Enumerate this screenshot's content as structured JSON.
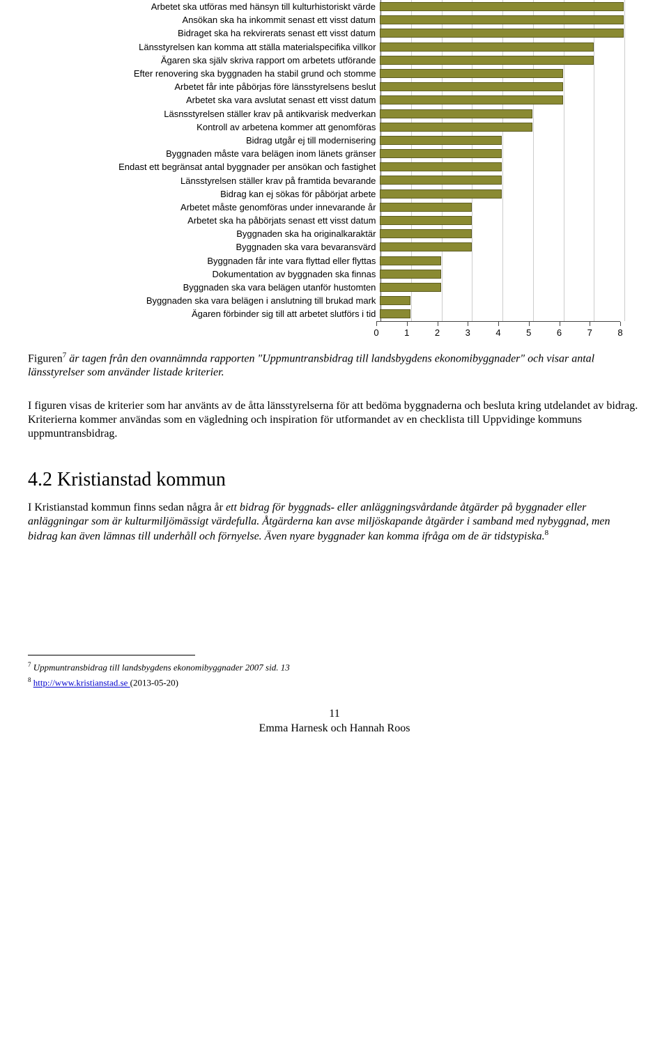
{
  "chart": {
    "type": "bar-horizontal",
    "bar_color": "#8a8a32",
    "bar_border_color": "#5c5c20",
    "grid_color": "#cccccc",
    "axis_color": "#444444",
    "background_color": "#ffffff",
    "label_fontsize": 13,
    "xlim": [
      0,
      8
    ],
    "xtick_step": 1,
    "xticks": [
      "0",
      "1",
      "2",
      "3",
      "4",
      "5",
      "6",
      "7",
      "8"
    ],
    "rows": [
      {
        "label": "Arbetet ska utföras med hänsyn till kulturhistoriskt värde",
        "value": 8
      },
      {
        "label": "Ansökan ska ha inkommit senast ett visst datum",
        "value": 8
      },
      {
        "label": "Bidraget ska ha rekvirerats  senast ett visst datum",
        "value": 8
      },
      {
        "label": "Länsstyrelsen kan komma att ställa materialspecifika villkor",
        "value": 7
      },
      {
        "label": "Ägaren ska själv  skriva rapport om  arbetets utförande",
        "value": 7
      },
      {
        "label": "Efter renovering ska byggnaden ha stabil grund och stomme",
        "value": 6
      },
      {
        "label": "Arbetet får inte påbörjas före länsstyrelsens beslut",
        "value": 6
      },
      {
        "label": "Arbetet ska vara avslutat senast ett visst datum",
        "value": 6
      },
      {
        "label": "Läsnsstyrelsen ställer krav på antikvarisk medverkan",
        "value": 5
      },
      {
        "label": "Kontroll av arbetena kommer att genomföras",
        "value": 5
      },
      {
        "label": "Bidrag utgår ej till modernisering",
        "value": 4
      },
      {
        "label": "Byggnaden måste vara belägen inom länets gränser",
        "value": 4
      },
      {
        "label": "Endast ett begränsat antal byggnader per ansökan och fastighet",
        "value": 4
      },
      {
        "label": "Länsstyrelsen ställer krav på framtida bevarande",
        "value": 4
      },
      {
        "label": "Bidrag kan ej sökas för påbörjat arbete",
        "value": 4
      },
      {
        "label": "Arbetet måste genomföras under innevarande år",
        "value": 3
      },
      {
        "label": "Arbetet ska ha påbörjats senast ett visst datum",
        "value": 3
      },
      {
        "label": "Byggnaden ska ha originalkaraktär",
        "value": 3
      },
      {
        "label": "Byggnaden ska vara bevaransvärd",
        "value": 3
      },
      {
        "label": "Byggnaden får inte vara flyttad eller flyttas",
        "value": 2
      },
      {
        "label": "Dokumentation av byggnaden ska finnas",
        "value": 2
      },
      {
        "label": "Byggnaden ska vara belägen utanför hustomten",
        "value": 2
      },
      {
        "label": "Byggnaden ska vara belägen i anslutning till brukad mark",
        "value": 1
      },
      {
        "label": "Ägaren förbinder sig till att arbetet slutförs i tid",
        "value": 1
      }
    ]
  },
  "caption": {
    "prefix": "Figuren",
    "sup": "7",
    "rest": " är tagen från den ovannämnda rapporten \"Uppmuntransbidrag till landsbygdens ekonomibyggnader\" och visar antal länsstyrelser som använder listade kriterier."
  },
  "para1": "I figuren visas de kriterier som har använts av de åtta länsstyrelserna för att bedöma byggnaderna och besluta kring utdelandet av bidrag. Kriterierna kommer användas som en vägledning och inspiration för utformandet av en checklista till Uppvidinge kommuns uppmuntransbidrag.",
  "section_heading": "4.2 Kristianstad kommun",
  "italic_para": {
    "lead_roman": "I Kristianstad kommun finns sedan några år ",
    "body": "ett bidrag för byggnads- eller anläggningsvårdande åtgärder på byggnader eller anläggningar som är kulturmiljömässigt värdefulla. Åtgärderna kan avse miljöskapande åtgärder i samband med nybyggnad, men bidrag kan även lämnas till underhåll och förnyelse. Även nyare byggnader kan komma ifråga om de är tidstypiska.",
    "sup": "8"
  },
  "footnotes": {
    "f7": {
      "sup": "7",
      "text": " Uppmuntransbidrag till landsbygdens ekonomibyggnader 2007 sid. 13"
    },
    "f8": {
      "sup": "8",
      "link_text": "http://www.kristianstad.se ",
      "tail": "(2013-05-20)"
    }
  },
  "footer": {
    "page_no": "11",
    "authors": "Emma Harnesk och Hannah Roos"
  }
}
